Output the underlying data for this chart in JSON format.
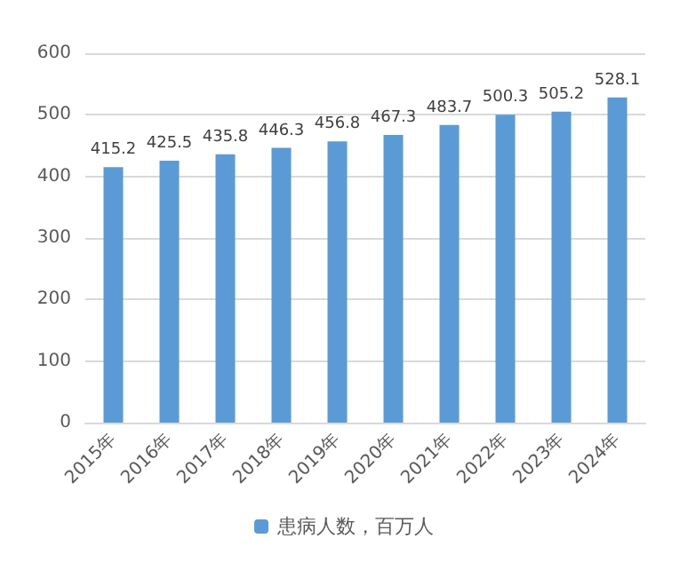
{
  "chart_data": {
    "type": "bar",
    "categories": [
      "2015年",
      "2016年",
      "2017年",
      "2018年",
      "2019年",
      "2020年",
      "2021年",
      "2022年",
      "2023年",
      "2024年"
    ],
    "series": [
      {
        "name": "患病人数，百万人",
        "color": "#5b9bd5",
        "values": [
          415.2,
          425.5,
          435.8,
          446.3,
          456.8,
          467.3,
          483.7,
          500.3,
          505.2,
          528.1
        ]
      }
    ],
    "ylim": [
      0,
      600
    ],
    "yticks": [
      0,
      100,
      200,
      300,
      400,
      500,
      600
    ],
    "grid": "y",
    "legend": "bottom",
    "data_labels": true
  }
}
